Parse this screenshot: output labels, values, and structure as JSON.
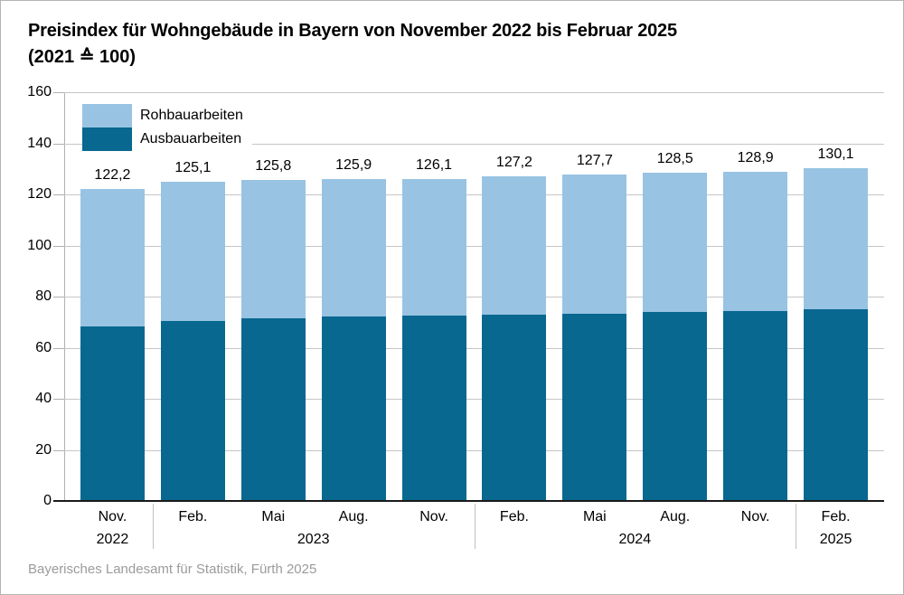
{
  "title": {
    "line1": "Preisindex für Wohngebäude in Bayern von November 2022 bis Februar 2025",
    "line2": "(2021 ≙ 100)"
  },
  "legend": {
    "items": [
      {
        "label": "Rohbauarbeiten",
        "color": "#98c3e3"
      },
      {
        "label": "Ausbauarbeiten",
        "color": "#086890"
      }
    ]
  },
  "footer": {
    "source": "Bayerisches Landesamt für Statistik, Fürth 2025"
  },
  "colors": {
    "rohbau_light_blue": "#98c3e3",
    "ausbau_dark_blue": "#086890",
    "gridline": "#c6c6c6",
    "axis_line": "#1a1a1a",
    "footer_text": "#9b9b9b"
  },
  "chart_data": {
    "type": "bar",
    "stacked": true,
    "title": "Preisindex für Wohngebäude in Bayern von November 2022 bis Februar 2025",
    "subtitle": "(2021 ≙ 100)",
    "categories": [
      "Nov.",
      "Feb.",
      "Mai",
      "Aug.",
      "Nov.",
      "Feb.",
      "Mai",
      "Aug.",
      "Nov.",
      "Feb."
    ],
    "year_groups": [
      {
        "label": "2022",
        "start": 0,
        "end": 0
      },
      {
        "label": "2023",
        "start": 1,
        "end": 4
      },
      {
        "label": "2024",
        "start": 5,
        "end": 8
      },
      {
        "label": "2025",
        "start": 9,
        "end": 9
      }
    ],
    "series": [
      {
        "name": "Ausbauarbeiten",
        "color": "#086890",
        "values": [
          68.4,
          70.5,
          71.5,
          72.1,
          72.4,
          73.1,
          73.3,
          73.9,
          74.2,
          75.2
        ]
      },
      {
        "name": "Rohbauarbeiten",
        "color": "#98c3e3",
        "values": [
          53.8,
          54.6,
          54.3,
          53.8,
          53.7,
          54.1,
          54.4,
          54.6,
          54.7,
          54.9
        ]
      }
    ],
    "totals": [
      122.2,
      125.1,
      125.8,
      125.9,
      126.1,
      127.2,
      127.7,
      128.5,
      128.9,
      130.1
    ],
    "total_labels": [
      "122,2",
      "125,1",
      "125,8",
      "125,9",
      "126,1",
      "127,2",
      "127,7",
      "128,5",
      "128,9",
      "130,1"
    ],
    "xlabel": "",
    "ylabel": "",
    "ylim": [
      0,
      160
    ],
    "ytick_step": 20,
    "yticks": [
      0,
      20,
      40,
      60,
      80,
      100,
      120,
      140,
      160
    ],
    "grid": true,
    "legend_position": "top-left"
  }
}
